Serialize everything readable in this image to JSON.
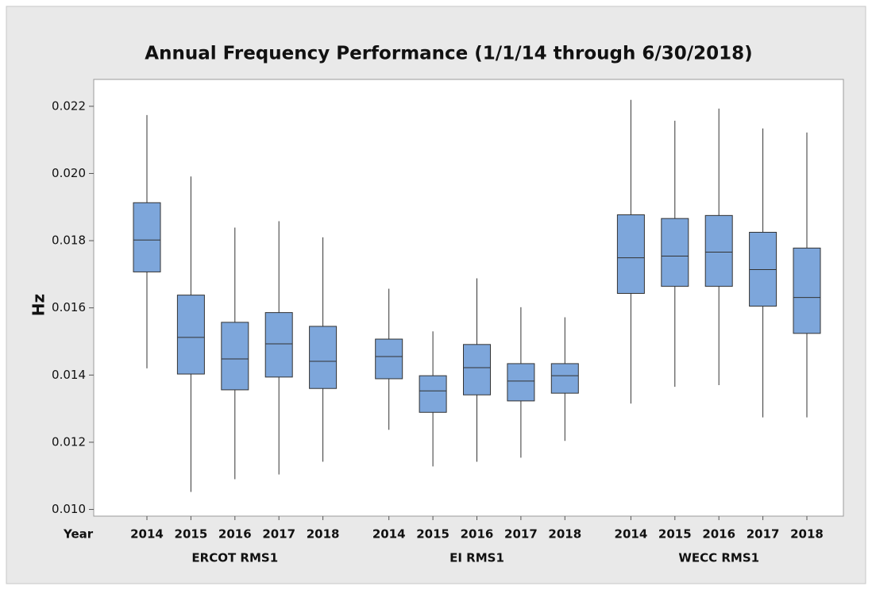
{
  "chart_data": {
    "type": "box",
    "title": "Annual Frequency Performance (1/1/14 through 6/30/2018)",
    "y_label": "Hz",
    "x_label": "Year",
    "color": "#7da6db",
    "ylim": [
      0.0098,
      0.0228
    ],
    "yticks": [
      {
        "value": 0.01,
        "label": "0.010"
      },
      {
        "value": 0.012,
        "label": "0.012"
      },
      {
        "value": 0.014,
        "label": "0.014"
      },
      {
        "value": 0.016,
        "label": "0.016"
      },
      {
        "value": 0.018,
        "label": "0.018"
      },
      {
        "value": 0.02,
        "label": "0.020"
      },
      {
        "value": 0.022,
        "label": "0.022"
      }
    ],
    "groups": [
      {
        "name": "ERCOT RMS1",
        "categories": [
          "2014",
          "2015",
          "2016",
          "2017",
          "2018"
        ],
        "boxes": [
          {
            "min": 0.0142,
            "q1": 0.01707,
            "median": 0.01802,
            "q3": 0.01913,
            "max": 0.02174
          },
          {
            "min": 0.01052,
            "q1": 0.01403,
            "median": 0.01512,
            "q3": 0.01638,
            "max": 0.01991
          },
          {
            "min": 0.0109,
            "q1": 0.01356,
            "median": 0.01448,
            "q3": 0.01557,
            "max": 0.01839
          },
          {
            "min": 0.01104,
            "q1": 0.01394,
            "median": 0.01493,
            "q3": 0.01586,
            "max": 0.01858
          },
          {
            "min": 0.01142,
            "q1": 0.0136,
            "median": 0.01441,
            "q3": 0.01545,
            "max": 0.0181
          }
        ]
      },
      {
        "name": "EI RMS1",
        "categories": [
          "2014",
          "2015",
          "2016",
          "2017",
          "2018"
        ],
        "boxes": [
          {
            "min": 0.01237,
            "q1": 0.01389,
            "median": 0.01455,
            "q3": 0.01507,
            "max": 0.01657
          },
          {
            "min": 0.01128,
            "q1": 0.01289,
            "median": 0.01353,
            "q3": 0.01398,
            "max": 0.0153
          },
          {
            "min": 0.01142,
            "q1": 0.01341,
            "median": 0.01422,
            "q3": 0.01491,
            "max": 0.01688
          },
          {
            "min": 0.01154,
            "q1": 0.01323,
            "median": 0.01382,
            "q3": 0.01434,
            "max": 0.01602
          },
          {
            "min": 0.01204,
            "q1": 0.01346,
            "median": 0.01398,
            "q3": 0.01434,
            "max": 0.01572
          }
        ]
      },
      {
        "name": "WECC RMS1",
        "categories": [
          "2014",
          "2015",
          "2016",
          "2017",
          "2018"
        ],
        "boxes": [
          {
            "min": 0.01315,
            "q1": 0.01643,
            "median": 0.01749,
            "q3": 0.01877,
            "max": 0.02219
          },
          {
            "min": 0.01365,
            "q1": 0.01664,
            "median": 0.01754,
            "q3": 0.01866,
            "max": 0.02157
          },
          {
            "min": 0.0137,
            "q1": 0.01664,
            "median": 0.01766,
            "q3": 0.01875,
            "max": 0.02193
          },
          {
            "min": 0.01274,
            "q1": 0.01605,
            "median": 0.01714,
            "q3": 0.01825,
            "max": 0.02134
          },
          {
            "min": 0.01274,
            "q1": 0.01524,
            "median": 0.01631,
            "q3": 0.01778,
            "max": 0.02122
          }
        ]
      }
    ]
  }
}
